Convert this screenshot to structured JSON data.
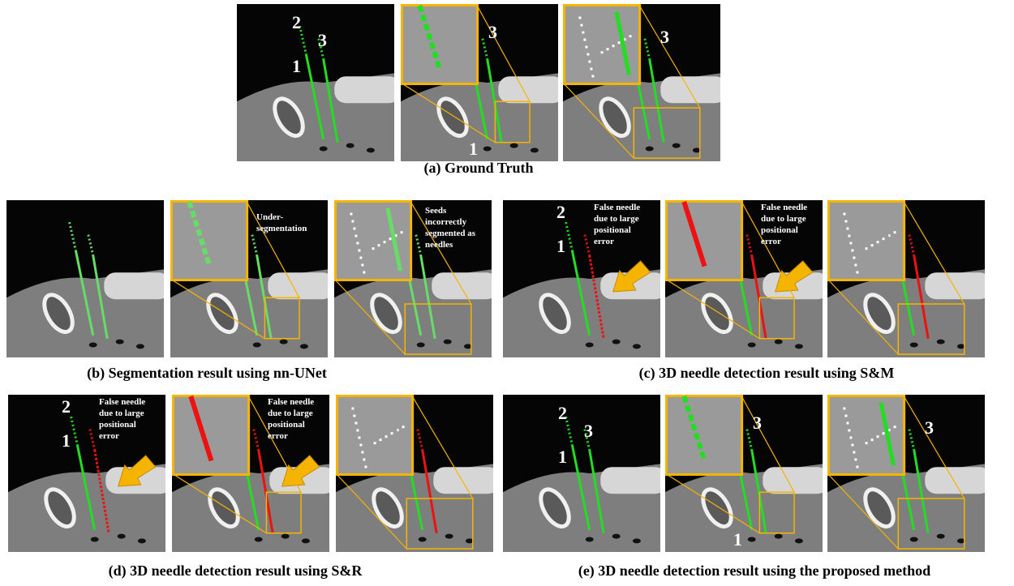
{
  "figure": {
    "panels": [
      {
        "caption": "(a) Ground Truth",
        "images": [
          {
            "labels": [
              "2",
              "3",
              "1"
            ]
          },
          {
            "labels": [
              "3",
              "1"
            ]
          },
          {
            "labels": [
              "3"
            ]
          }
        ]
      },
      {
        "caption": "(b) Segmentation result using nn-UNet",
        "images": [
          {},
          {
            "note": [
              "Under-",
              "segmentation"
            ]
          },
          {
            "note": [
              "Seeds",
              "incorrectly",
              "segmented as",
              "needles"
            ]
          }
        ]
      },
      {
        "caption": "(c) 3D needle detection result using S&M",
        "images": [
          {
            "labels": [
              "2",
              "1"
            ],
            "note": [
              "False needle",
              "due to large",
              "positional",
              "error"
            ]
          },
          {
            "note": [
              "False needle",
              "due to large",
              "positional",
              "error"
            ]
          },
          {}
        ]
      },
      {
        "caption": "(d) 3D needle detection result using S&R",
        "images": [
          {
            "labels": [
              "2",
              "1"
            ],
            "note": [
              "False needle",
              "due to large",
              "positional",
              "error"
            ]
          },
          {
            "note": [
              "False needle",
              "due to large",
              "positional",
              "error"
            ]
          },
          {}
        ]
      },
      {
        "caption": "(e) 3D needle detection result using the proposed method",
        "images": [
          {
            "labels": [
              "2",
              "3",
              "1"
            ]
          },
          {
            "labels": [
              "3",
              "1"
            ]
          },
          {
            "labels": [
              "3"
            ]
          }
        ]
      }
    ]
  }
}
